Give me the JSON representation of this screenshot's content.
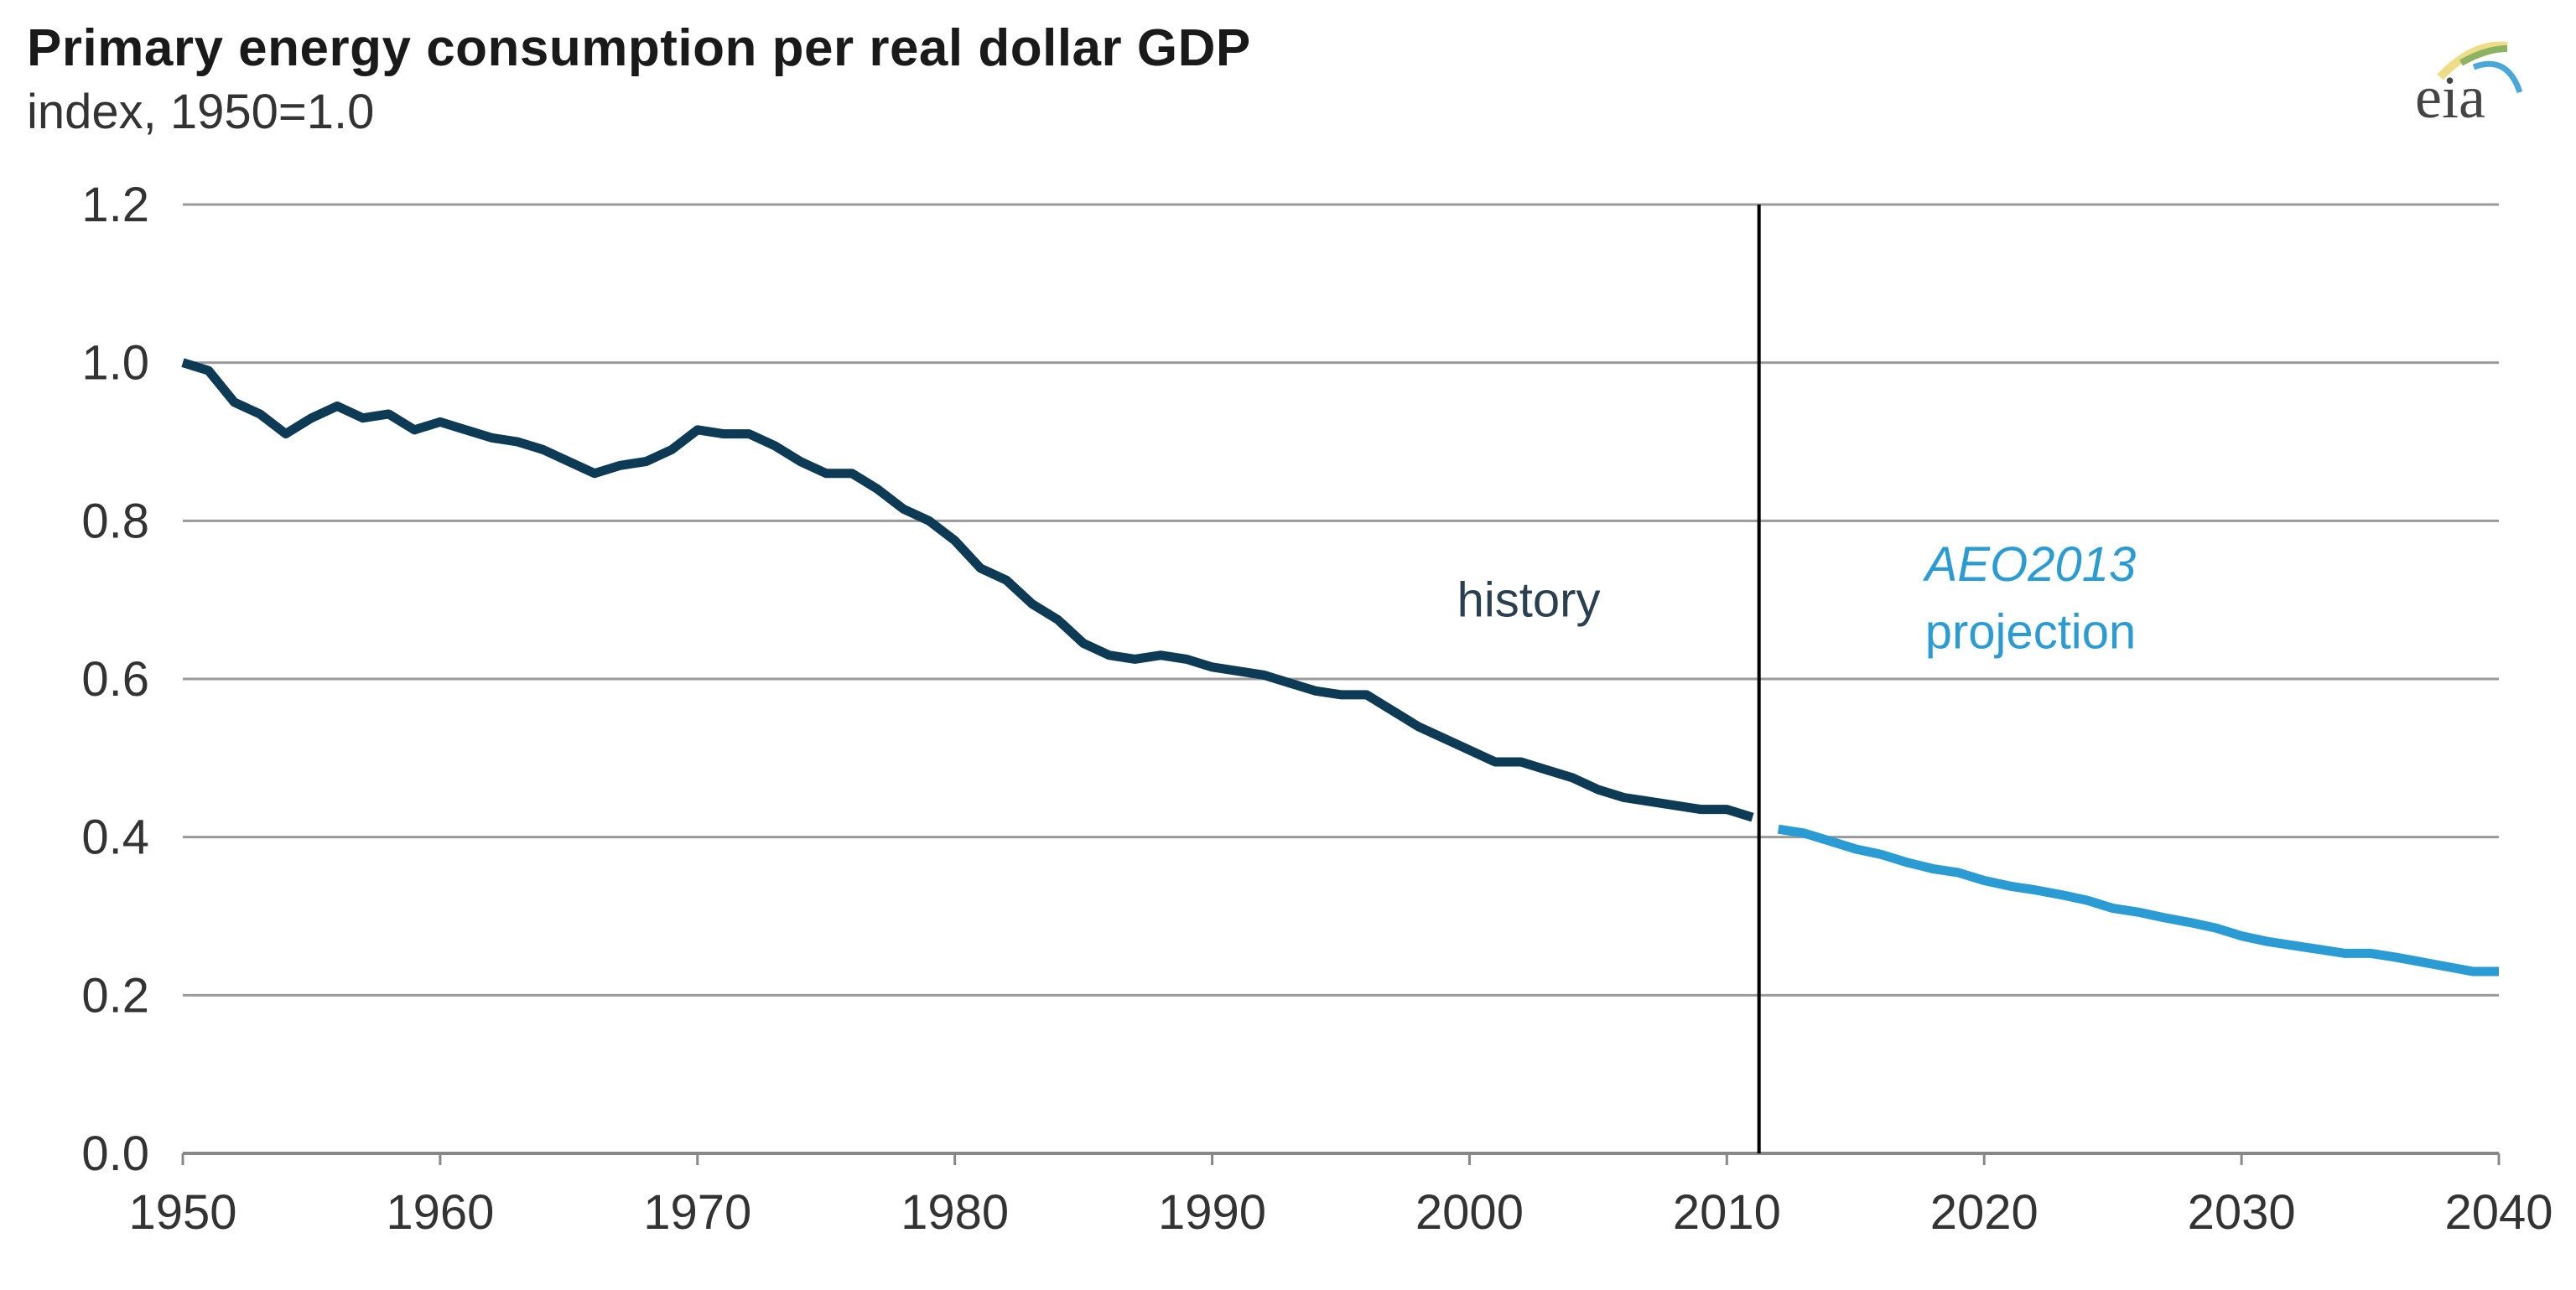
{
  "chart_data": {
    "type": "line",
    "title": "Primary energy consumption per real dollar GDP",
    "subtitle": "index, 1950=1.0",
    "xlim": [
      1950,
      2040
    ],
    "ylim": [
      0,
      1.2
    ],
    "xticks": [
      "1950",
      "1960",
      "1970",
      "1980",
      "1990",
      "2000",
      "2010",
      "2020",
      "2030",
      "2040"
    ],
    "yticks": [
      "0.0",
      "0.2",
      "0.4",
      "0.6",
      "0.8",
      "1.0",
      "1.2"
    ],
    "grid": true,
    "divider_year": 2011.25,
    "annotations": {
      "history": "history",
      "projection_italic": "AEO2013",
      "projection": "projection"
    },
    "series": [
      {
        "key": "history",
        "color": "#0d3a55",
        "x": [
          1950,
          1951,
          1952,
          1953,
          1954,
          1955,
          1956,
          1957,
          1958,
          1959,
          1960,
          1961,
          1962,
          1963,
          1964,
          1965,
          1966,
          1967,
          1968,
          1969,
          1970,
          1971,
          1972,
          1973,
          1974,
          1975,
          1976,
          1977,
          1978,
          1979,
          1980,
          1981,
          1982,
          1983,
          1984,
          1985,
          1986,
          1987,
          1988,
          1989,
          1990,
          1991,
          1992,
          1993,
          1994,
          1995,
          1996,
          1997,
          1998,
          1999,
          2000,
          2001,
          2002,
          2003,
          2004,
          2005,
          2006,
          2007,
          2008,
          2009,
          2010,
          2011
        ],
        "y": [
          1.0,
          0.99,
          0.95,
          0.935,
          0.91,
          0.93,
          0.945,
          0.93,
          0.935,
          0.915,
          0.925,
          0.915,
          0.905,
          0.9,
          0.89,
          0.875,
          0.86,
          0.87,
          0.875,
          0.89,
          0.915,
          0.91,
          0.91,
          0.895,
          0.875,
          0.86,
          0.86,
          0.84,
          0.815,
          0.8,
          0.775,
          0.74,
          0.725,
          0.695,
          0.675,
          0.645,
          0.63,
          0.625,
          0.63,
          0.625,
          0.615,
          0.61,
          0.605,
          0.595,
          0.585,
          0.58,
          0.58,
          0.56,
          0.54,
          0.525,
          0.51,
          0.495,
          0.495,
          0.485,
          0.475,
          0.46,
          0.45,
          0.445,
          0.44,
          0.435,
          0.435,
          0.425
        ]
      },
      {
        "key": "projection",
        "color": "#2b9bd3",
        "x": [
          2012,
          2013,
          2014,
          2015,
          2016,
          2017,
          2018,
          2019,
          2020,
          2021,
          2022,
          2023,
          2024,
          2025,
          2026,
          2027,
          2028,
          2029,
          2030,
          2031,
          2032,
          2033,
          2034,
          2035,
          2036,
          2037,
          2038,
          2039,
          2040
        ],
        "y": [
          0.41,
          0.405,
          0.395,
          0.385,
          0.378,
          0.368,
          0.36,
          0.355,
          0.345,
          0.338,
          0.333,
          0.327,
          0.32,
          0.31,
          0.305,
          0.298,
          0.292,
          0.285,
          0.275,
          0.268,
          0.263,
          0.258,
          0.253,
          0.253,
          0.248,
          0.242,
          0.236,
          0.23,
          0.23
        ]
      }
    ]
  },
  "logo": {
    "text": "eia"
  }
}
